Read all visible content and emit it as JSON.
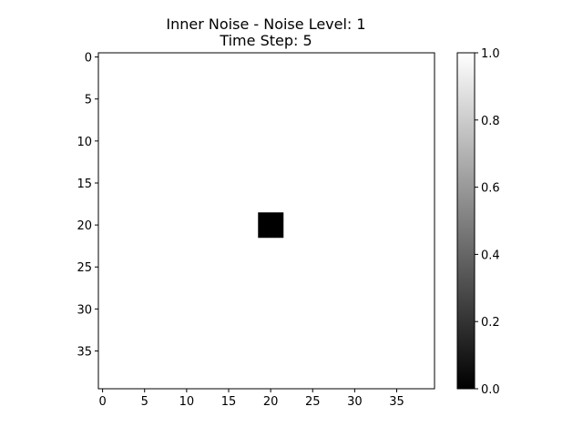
{
  "chart_data": {
    "type": "heatmap",
    "title_line1": "Inner Noise - Noise Level: 1",
    "title_line2": "Time Step: 5",
    "grid_size": [
      40,
      40
    ],
    "default_value": 1.0,
    "cells": [
      {
        "row": 19,
        "col": 19,
        "value": 0.0
      },
      {
        "row": 19,
        "col": 20,
        "value": 0.0
      },
      {
        "row": 19,
        "col": 21,
        "value": 0.0
      },
      {
        "row": 20,
        "col": 19,
        "value": 0.0
      },
      {
        "row": 20,
        "col": 20,
        "value": 0.0
      },
      {
        "row": 20,
        "col": 21,
        "value": 0.0
      },
      {
        "row": 21,
        "col": 19,
        "value": 0.0
      },
      {
        "row": 21,
        "col": 20,
        "value": 0.0
      },
      {
        "row": 21,
        "col": 21,
        "value": 0.0
      }
    ],
    "x_ticks": [
      0,
      5,
      10,
      15,
      20,
      25,
      30,
      35
    ],
    "y_ticks": [
      0,
      5,
      10,
      15,
      20,
      25,
      30,
      35
    ],
    "colorbar": {
      "range": [
        0.0,
        1.0
      ],
      "ticks": [
        "0.0",
        "0.2",
        "0.4",
        "0.6",
        "0.8",
        "1.0"
      ],
      "colormap": "gray"
    }
  }
}
